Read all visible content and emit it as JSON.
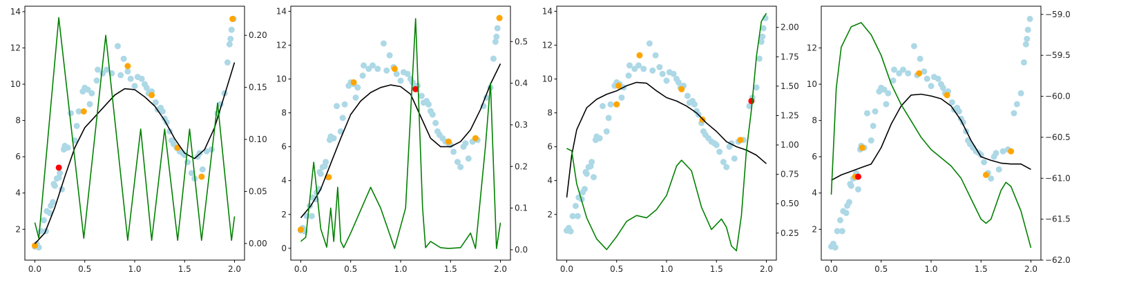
{
  "colors": {
    "scatter": "#add8e6",
    "highlight": "#ffa500",
    "current": "#ff0000",
    "mean": "#000000",
    "acquisition": "#008000"
  },
  "chart_data": [
    {
      "type": "scatter",
      "xlim": [
        -0.1,
        2.1
      ],
      "ylim": [
        0.3,
        14.3
      ],
      "xticks": [
        0.0,
        0.5,
        1.0,
        1.5,
        2.0
      ],
      "yticks": [
        2,
        4,
        6,
        8,
        10,
        12,
        14
      ],
      "y2lim": [
        -0.016,
        0.228
      ],
      "y2ticks": [
        0.0,
        0.05,
        0.1,
        0.15,
        0.2
      ],
      "orange_points": [
        [
          0.0,
          1.1
        ],
        [
          0.49,
          8.5
        ],
        [
          0.93,
          11.0
        ],
        [
          1.17,
          9.4
        ],
        [
          1.43,
          6.5
        ],
        [
          1.67,
          4.9
        ],
        [
          1.98,
          13.6
        ]
      ],
      "red_point": [
        0.24,
        5.4
      ],
      "mean_curve": [
        [
          0.0,
          1.2
        ],
        [
          0.1,
          1.8
        ],
        [
          0.2,
          3.2
        ],
        [
          0.3,
          4.9
        ],
        [
          0.4,
          6.5
        ],
        [
          0.5,
          7.6
        ],
        [
          0.6,
          8.2
        ],
        [
          0.7,
          8.8
        ],
        [
          0.8,
          9.4
        ],
        [
          0.9,
          9.75
        ],
        [
          1.0,
          9.7
        ],
        [
          1.1,
          9.3
        ],
        [
          1.2,
          8.8
        ],
        [
          1.3,
          8.0
        ],
        [
          1.4,
          7.0
        ],
        [
          1.5,
          6.2
        ],
        [
          1.6,
          5.9
        ],
        [
          1.7,
          6.4
        ],
        [
          1.8,
          7.6
        ],
        [
          1.9,
          9.4
        ],
        [
          2.0,
          11.2
        ]
      ],
      "acq_curve": [
        [
          0.0,
          0.02
        ],
        [
          0.04,
          0.005
        ],
        [
          0.24,
          0.217
        ],
        [
          0.49,
          0.005
        ],
        [
          0.71,
          0.2
        ],
        [
          0.93,
          0.003
        ],
        [
          1.06,
          0.11
        ],
        [
          1.17,
          0.003
        ],
        [
          1.3,
          0.11
        ],
        [
          1.43,
          0.003
        ],
        [
          1.55,
          0.11
        ],
        [
          1.67,
          0.003
        ],
        [
          1.83,
          0.135
        ],
        [
          1.97,
          0.003
        ],
        [
          2.0,
          0.026
        ]
      ]
    },
    {
      "type": "scatter",
      "xlim": [
        -0.1,
        2.1
      ],
      "ylim": [
        -0.7,
        14.3
      ],
      "xticks": [
        0.0,
        0.5,
        1.0,
        1.5,
        2.0
      ],
      "yticks": [
        0,
        2,
        4,
        6,
        8,
        10,
        12,
        14
      ],
      "y2lim": [
        -0.025,
        0.585
      ],
      "y2ticks": [
        0.0,
        0.1,
        0.2,
        0.3,
        0.4,
        0.5
      ],
      "orange_points": [
        [
          0.0,
          1.1
        ],
        [
          0.28,
          4.2
        ],
        [
          0.53,
          9.8
        ],
        [
          0.94,
          10.6
        ],
        [
          1.48,
          6.3
        ],
        [
          1.75,
          6.5
        ],
        [
          1.99,
          13.6
        ]
      ],
      "red_point": [
        1.15,
        9.4
      ],
      "mean_curve": [
        [
          0.0,
          1.8
        ],
        [
          0.1,
          2.5
        ],
        [
          0.2,
          3.5
        ],
        [
          0.3,
          5.0
        ],
        [
          0.4,
          6.5
        ],
        [
          0.5,
          7.9
        ],
        [
          0.6,
          8.7
        ],
        [
          0.7,
          9.2
        ],
        [
          0.8,
          9.5
        ],
        [
          0.9,
          9.65
        ],
        [
          1.0,
          9.55
        ],
        [
          1.1,
          9.1
        ],
        [
          1.2,
          7.8
        ],
        [
          1.3,
          6.5
        ],
        [
          1.4,
          6.0
        ],
        [
          1.5,
          6.0
        ],
        [
          1.6,
          6.3
        ],
        [
          1.7,
          7.0
        ],
        [
          1.8,
          8.2
        ],
        [
          1.9,
          9.7
        ],
        [
          2.0,
          10.9
        ]
      ],
      "acq_curve": [
        [
          0.0,
          0.02
        ],
        [
          0.05,
          0.03
        ],
        [
          0.13,
          0.21
        ],
        [
          0.2,
          0.05
        ],
        [
          0.26,
          0.006
        ],
        [
          0.3,
          0.1
        ],
        [
          0.33,
          0.02
        ],
        [
          0.37,
          0.15
        ],
        [
          0.4,
          0.02
        ],
        [
          0.43,
          0.005
        ],
        [
          0.5,
          0.04
        ],
        [
          0.7,
          0.15
        ],
        [
          0.8,
          0.1
        ],
        [
          0.94,
          0.003
        ],
        [
          1.05,
          0.1
        ],
        [
          1.15,
          0.555
        ],
        [
          1.22,
          0.1
        ],
        [
          1.25,
          0.005
        ],
        [
          1.3,
          0.02
        ],
        [
          1.4,
          0.005
        ],
        [
          1.48,
          0.003
        ],
        [
          1.6,
          0.005
        ],
        [
          1.7,
          0.04
        ],
        [
          1.75,
          0.003
        ],
        [
          1.85,
          0.25
        ],
        [
          1.9,
          0.4
        ],
        [
          1.96,
          0.003
        ],
        [
          2.0,
          0.065
        ]
      ]
    },
    {
      "type": "scatter",
      "xlim": [
        -0.1,
        2.1
      ],
      "ylim": [
        -0.7,
        14.3
      ],
      "xticks": [
        0.0,
        0.5,
        1.0,
        1.5,
        2.0
      ],
      "yticks": [
        2,
        4,
        6,
        8,
        10,
        12,
        14
      ],
      "y2lim": [
        0.02,
        2.18
      ],
      "y2ticks": [
        0.25,
        0.5,
        0.75,
        1.0,
        1.25,
        1.5,
        1.75,
        2.0
      ],
      "orange_points": [
        [
          0.5,
          8.5
        ],
        [
          0.52,
          9.6
        ],
        [
          0.73,
          11.4
        ],
        [
          1.15,
          9.4
        ],
        [
          1.36,
          7.6
        ],
        [
          1.74,
          6.4
        ]
      ],
      "red_point": [
        1.85,
        8.7
      ],
      "mean_curve": [
        [
          0.0,
          3.0
        ],
        [
          0.05,
          5.5
        ],
        [
          0.1,
          7.0
        ],
        [
          0.2,
          8.3
        ],
        [
          0.3,
          8.8
        ],
        [
          0.4,
          9.1
        ],
        [
          0.5,
          9.3
        ],
        [
          0.6,
          9.6
        ],
        [
          0.7,
          9.8
        ],
        [
          0.8,
          9.75
        ],
        [
          0.9,
          9.3
        ],
        [
          1.0,
          8.9
        ],
        [
          1.1,
          8.7
        ],
        [
          1.2,
          8.4
        ],
        [
          1.3,
          8.0
        ],
        [
          1.4,
          7.4
        ],
        [
          1.5,
          6.9
        ],
        [
          1.6,
          6.3
        ],
        [
          1.7,
          6.0
        ],
        [
          1.8,
          5.8
        ],
        [
          1.9,
          5.5
        ],
        [
          2.0,
          5.0
        ]
      ],
      "acq_curve": [
        [
          0.0,
          0.97
        ],
        [
          0.05,
          0.95
        ],
        [
          0.1,
          0.67
        ],
        [
          0.2,
          0.38
        ],
        [
          0.3,
          0.2
        ],
        [
          0.4,
          0.11
        ],
        [
          0.5,
          0.22
        ],
        [
          0.6,
          0.35
        ],
        [
          0.7,
          0.4
        ],
        [
          0.8,
          0.38
        ],
        [
          0.9,
          0.45
        ],
        [
          1.0,
          0.57
        ],
        [
          1.1,
          0.82
        ],
        [
          1.15,
          0.87
        ],
        [
          1.25,
          0.78
        ],
        [
          1.35,
          0.47
        ],
        [
          1.45,
          0.28
        ],
        [
          1.55,
          0.37
        ],
        [
          1.6,
          0.3
        ],
        [
          1.65,
          0.14
        ],
        [
          1.7,
          0.1
        ],
        [
          1.75,
          0.4
        ],
        [
          1.8,
          0.95
        ],
        [
          1.85,
          1.3
        ],
        [
          1.9,
          1.75
        ],
        [
          1.95,
          2.05
        ],
        [
          2.0,
          2.12
        ]
      ]
    },
    {
      "type": "scatter",
      "xlim": [
        -0.1,
        2.1
      ],
      "ylim": [
        0.3,
        14.3
      ],
      "xticks": [
        0.0,
        0.5,
        1.0,
        1.5,
        2.0
      ],
      "yticks": [
        2,
        4,
        6,
        8,
        10,
        12
      ],
      "y2lim": [
        -62.0,
        -58.9
      ],
      "y2ticks": [
        -62.0,
        -61.5,
        -61.0,
        -60.5,
        -60.0,
        -59.5,
        -59.0
      ],
      "orange_points": [
        [
          0.24,
          4.9
        ],
        [
          0.31,
          6.5
        ],
        [
          0.88,
          10.6
        ],
        [
          1.16,
          9.4
        ],
        [
          1.55,
          5.0
        ],
        [
          1.8,
          6.3
        ]
      ],
      "red_point": [
        0.27,
        4.9
      ],
      "mean_curve": [
        [
          0.0,
          4.7
        ],
        [
          0.1,
          5.0
        ],
        [
          0.2,
          5.2
        ],
        [
          0.3,
          5.4
        ],
        [
          0.4,
          5.6
        ],
        [
          0.5,
          6.5
        ],
        [
          0.6,
          7.8
        ],
        [
          0.7,
          8.8
        ],
        [
          0.8,
          9.4
        ],
        [
          0.9,
          9.45
        ],
        [
          1.0,
          9.35
        ],
        [
          1.1,
          9.2
        ],
        [
          1.2,
          8.8
        ],
        [
          1.3,
          8.0
        ],
        [
          1.4,
          6.9
        ],
        [
          1.5,
          6.0
        ],
        [
          1.6,
          5.8
        ],
        [
          1.7,
          5.65
        ],
        [
          1.8,
          5.6
        ],
        [
          1.9,
          5.6
        ],
        [
          2.0,
          5.3
        ]
      ],
      "acq_curve": [
        [
          0.0,
          -61.2
        ],
        [
          0.05,
          -59.9
        ],
        [
          0.1,
          -59.4
        ],
        [
          0.2,
          -59.15
        ],
        [
          0.3,
          -59.1
        ],
        [
          0.4,
          -59.25
        ],
        [
          0.5,
          -59.5
        ],
        [
          0.6,
          -59.85
        ],
        [
          0.7,
          -60.1
        ],
        [
          0.8,
          -60.3
        ],
        [
          0.9,
          -60.5
        ],
        [
          1.0,
          -60.65
        ],
        [
          1.1,
          -60.75
        ],
        [
          1.2,
          -60.85
        ],
        [
          1.3,
          -61.0
        ],
        [
          1.4,
          -61.25
        ],
        [
          1.5,
          -61.5
        ],
        [
          1.55,
          -61.55
        ],
        [
          1.6,
          -61.5
        ],
        [
          1.7,
          -61.15
        ],
        [
          1.75,
          -61.05
        ],
        [
          1.8,
          -61.1
        ],
        [
          1.9,
          -61.4
        ],
        [
          2.0,
          -61.85
        ]
      ]
    }
  ],
  "scatter_points": [
    [
      0.0,
      1.05
    ],
    [
      0.02,
      1.2
    ],
    [
      0.04,
      1.0
    ],
    [
      0.06,
      1.9
    ],
    [
      0.09,
      2.5
    ],
    [
      0.11,
      1.9
    ],
    [
      0.12,
      3.0
    ],
    [
      0.15,
      2.9
    ],
    [
      0.16,
      3.3
    ],
    [
      0.18,
      3.5
    ],
    [
      0.19,
      4.5
    ],
    [
      0.2,
      4.4
    ],
    [
      0.22,
      4.8
    ],
    [
      0.24,
      4.85
    ],
    [
      0.25,
      5.1
    ],
    [
      0.27,
      4.2
    ],
    [
      0.29,
      6.4
    ],
    [
      0.3,
      6.6
    ],
    [
      0.33,
      6.5
    ],
    [
      0.36,
      8.4
    ],
    [
      0.4,
      6.9
    ],
    [
      0.42,
      7.7
    ],
    [
      0.44,
      8.5
    ],
    [
      0.48,
      9.6
    ],
    [
      0.5,
      9.8
    ],
    [
      0.53,
      9.7
    ],
    [
      0.55,
      8.9
    ],
    [
      0.57,
      9.5
    ],
    [
      0.62,
      10.2
    ],
    [
      0.63,
      10.8
    ],
    [
      0.68,
      10.6
    ],
    [
      0.72,
      10.8
    ],
    [
      0.77,
      10.6
    ],
    [
      0.83,
      12.1
    ],
    [
      0.86,
      10.5
    ],
    [
      0.89,
      11.4
    ],
    [
      0.93,
      10.7
    ],
    [
      0.96,
      10.3
    ],
    [
      1.0,
      9.9
    ],
    [
      1.03,
      10.4
    ],
    [
      1.07,
      10.3
    ],
    [
      1.1,
      10.0
    ],
    [
      1.12,
      9.8
    ],
    [
      1.14,
      9.5
    ],
    [
      1.17,
      9.6
    ],
    [
      1.21,
      9.0
    ],
    [
      1.23,
      8.6
    ],
    [
      1.26,
      8.7
    ],
    [
      1.28,
      8.5
    ],
    [
      1.3,
      8.1
    ],
    [
      1.32,
      7.9
    ],
    [
      1.35,
      7.4
    ],
    [
      1.37,
      6.9
    ],
    [
      1.39,
      6.7
    ],
    [
      1.42,
      6.5
    ],
    [
      1.45,
      6.3
    ],
    [
      1.48,
      6.2
    ],
    [
      1.5,
      6.1
    ],
    [
      1.53,
      5.7
    ],
    [
      1.57,
      5.1
    ],
    [
      1.6,
      4.8
    ],
    [
      1.63,
      6.0
    ],
    [
      1.65,
      6.2
    ],
    [
      1.68,
      5.3
    ],
    [
      1.72,
      6.3
    ],
    [
      1.77,
      6.4
    ],
    [
      1.83,
      8.4
    ],
    [
      1.86,
      8.9
    ],
    [
      1.9,
      9.5
    ],
    [
      1.93,
      11.2
    ],
    [
      1.95,
      12.2
    ],
    [
      1.96,
      12.5
    ],
    [
      1.97,
      13.0
    ],
    [
      1.99,
      13.6
    ]
  ]
}
